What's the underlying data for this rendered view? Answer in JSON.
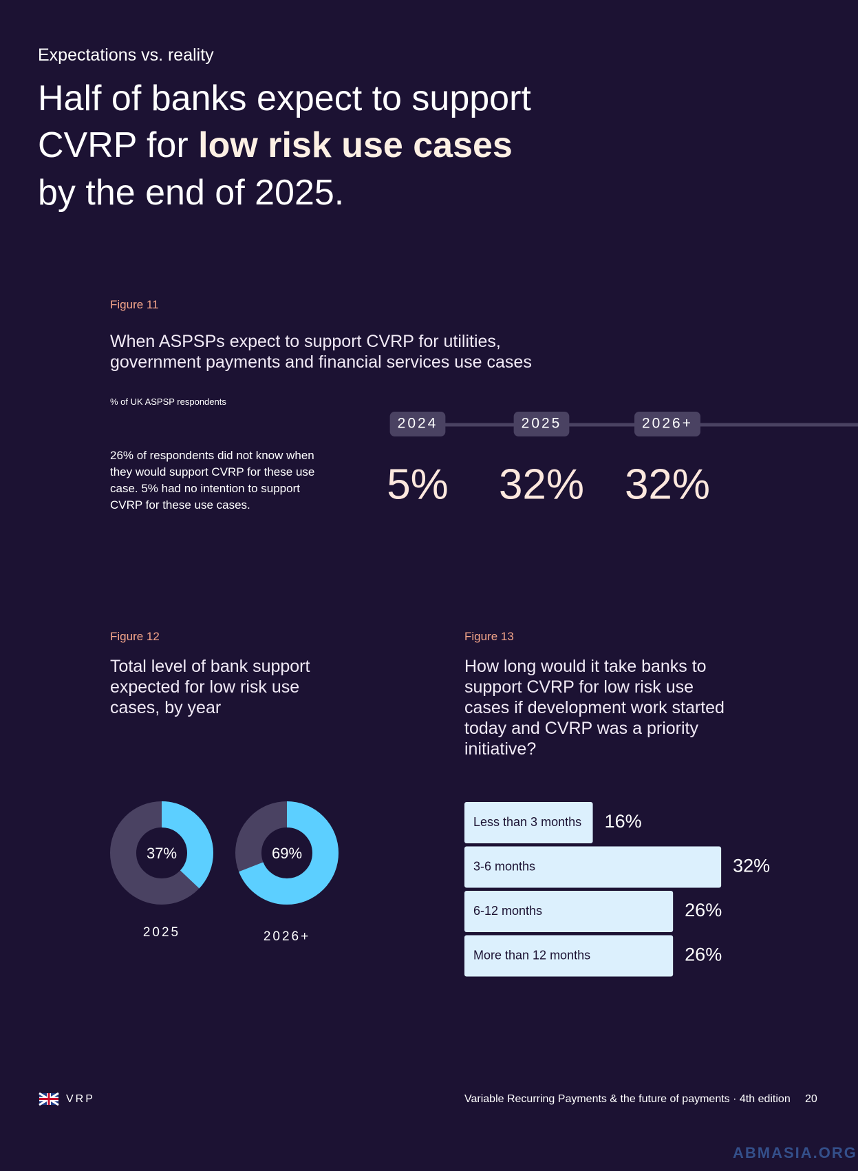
{
  "header": {
    "eyebrow": "Expectations vs. reality",
    "title_line1": "Half of banks expect to support",
    "title_line2_start": "CVRP for",
    "title_line2_emphasis": "low risk use cases",
    "title_line3": "by the end of 2025."
  },
  "figure11": {
    "label": "Figure 11",
    "title": "When ASPSPs expect to support CVRP for utilities, government payments and financial services use cases",
    "subtitle": "% of UK ASPSP respondents",
    "note": "26% of respondents did not know when they would support CVRP for these use case. 5% had no intention to support CVRP for these use cases.",
    "chart_data": {
      "type": "timeline",
      "categories": [
        "2024",
        "2025",
        "2026+"
      ],
      "values": [
        5,
        32,
        32
      ],
      "value_labels": [
        "5%",
        "32%",
        "32%"
      ]
    }
  },
  "figure12": {
    "label": "Figure 12",
    "title": "Total level of bank support expected for low risk use cases, by year",
    "chart_data": {
      "type": "donut",
      "categories": [
        "2025",
        "2026+"
      ],
      "values": [
        37,
        69
      ],
      "value_labels": [
        "37%",
        "69%"
      ],
      "color": "#5ccfff",
      "track_color": "#4a4262"
    }
  },
  "figure13": {
    "label": "Figure 13",
    "title": "How long would it take banks to support CVRP for low risk use cases if development work started today and CVRP was a priority initiative?",
    "chart_data": {
      "type": "bar",
      "orientation": "horizontal",
      "categories": [
        "Less than 3 months",
        "3-6 months",
        "6-12 months",
        "More than 12 months"
      ],
      "values": [
        16,
        32,
        26,
        26
      ],
      "value_labels": [
        "16%",
        "32%",
        "26%",
        "26%"
      ],
      "color": "#dcf0fd"
    }
  },
  "footer": {
    "brand": "VRP",
    "publication": "Variable Recurring Payments & the future of payments · 4th edition",
    "page": "20",
    "watermark": "ABMASIA.ORG"
  }
}
